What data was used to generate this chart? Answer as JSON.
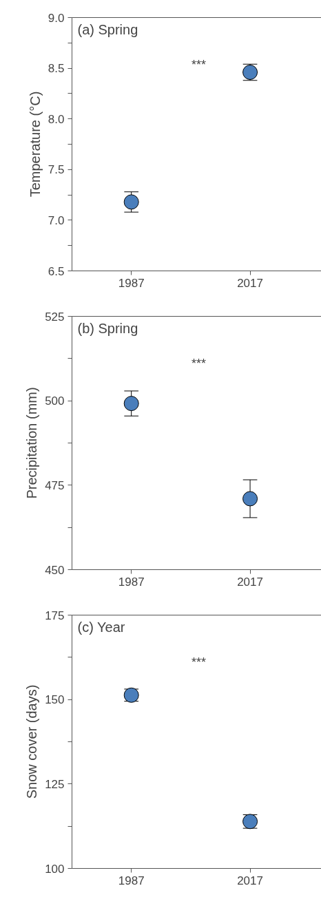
{
  "chart_data": [
    {
      "type": "scatter",
      "title": "(a) Spring",
      "ylabel": "Temperature (°C)",
      "categories": [
        "1987",
        "2017"
      ],
      "ylim": [
        6.5,
        9.0
      ],
      "yticks": [
        {
          "value": 6.5,
          "label": "6.5"
        },
        {
          "value": 6.75,
          "label": null
        },
        {
          "value": 7.0,
          "label": "7.0"
        },
        {
          "value": 7.25,
          "label": null
        },
        {
          "value": 7.5,
          "label": "7.5"
        },
        {
          "value": 7.75,
          "label": null
        },
        {
          "value": 8.0,
          "label": "8.0"
        },
        {
          "value": 8.25,
          "label": null
        },
        {
          "value": 8.5,
          "label": "8.5"
        },
        {
          "value": 8.75,
          "label": null
        },
        {
          "value": 9.0,
          "label": "9.0"
        }
      ],
      "series": [
        {
          "color": "#4a7ebb",
          "values": [
            7.18,
            8.46
          ],
          "errors": [
            0.1,
            0.08
          ]
        }
      ],
      "marker": "circle",
      "grid": false,
      "annotations": [
        "***"
      ]
    },
    {
      "type": "scatter",
      "title": "(b) Spring",
      "ylabel": "Precipitation (mm)",
      "categories": [
        "1987",
        "2017"
      ],
      "ylim": [
        450,
        525
      ],
      "yticks": [
        450,
        {
          "value": 462.5,
          "label": null
        },
        475,
        {
          "value": 487.5,
          "label": null
        },
        500,
        {
          "value": 512.5,
          "label": null
        },
        525
      ],
      "series": [
        {
          "color": "#4a7ebb",
          "values": [
            499.2,
            471.0
          ],
          "errors": [
            3.7,
            5.6
          ]
        }
      ],
      "marker": "circle",
      "grid": false,
      "annotations": [
        "***"
      ]
    },
    {
      "type": "scatter",
      "title": "(c) Year",
      "ylabel": "Snow cover (days)",
      "categories": [
        "1987",
        "2017"
      ],
      "ylim": [
        100,
        175
      ],
      "yticks": [
        100,
        {
          "value": 112.5,
          "label": null
        },
        125,
        {
          "value": 137.5,
          "label": null
        },
        150,
        {
          "value": 162.5,
          "label": null
        },
        175
      ],
      "series": [
        {
          "color": "#4a7ebb",
          "values": [
            151.3,
            113.9
          ],
          "errors": [
            1.8,
            2.0
          ]
        }
      ],
      "marker": "circle",
      "grid": false,
      "annotations": [
        "***"
      ]
    }
  ]
}
